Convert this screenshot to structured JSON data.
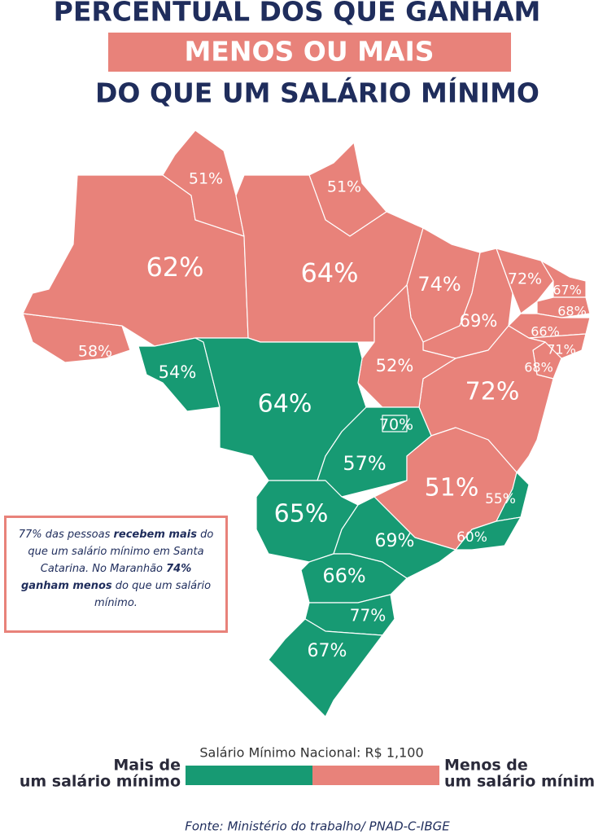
{
  "header": {
    "line1": "PERCENTUAL DOS QUE GANHAM",
    "line2": "MENOS OU MAIS",
    "line3": "DO QUE UM SALÁRIO MÍNIMO"
  },
  "regions": [
    {
      "label": "58%",
      "color": "#e8827a"
    },
    {
      "label": "62%",
      "color": "#e8827a"
    },
    {
      "label": "51%",
      "color": "#e8827a"
    },
    {
      "label": "51%",
      "color": "#e8827a"
    },
    {
      "label": "64%",
      "color": "#e8827a"
    },
    {
      "label": "74%",
      "color": "#e8827a"
    },
    {
      "label": "69%",
      "color": "#e8827a"
    },
    {
      "label": "72%",
      "color": "#e8827a"
    },
    {
      "label": "67%",
      "color": "#e8827a"
    },
    {
      "label": "68%",
      "color": "#e8827a"
    },
    {
      "label": "66%",
      "color": "#e8827a"
    },
    {
      "label": "71%",
      "color": "#e8827a"
    },
    {
      "label": "68%",
      "color": "#e8827a"
    },
    {
      "label": "72%",
      "color": "#e8827a"
    },
    {
      "label": "52%",
      "color": "#e8827a"
    },
    {
      "label": "54%",
      "color": "#179a73"
    },
    {
      "label": "64%",
      "color": "#179a73"
    },
    {
      "label": "57%",
      "color": "#179a73"
    },
    {
      "label": "70%",
      "color": "#179a73"
    },
    {
      "label": "51%",
      "color": "#e8827a"
    },
    {
      "label": "55%",
      "color": "#179a73"
    },
    {
      "label": "60%",
      "color": "#179a73"
    },
    {
      "label": "65%",
      "color": "#179a73"
    },
    {
      "label": "69%",
      "color": "#179a73"
    },
    {
      "label": "66%",
      "color": "#179a73"
    },
    {
      "label": "77%",
      "color": "#179a73"
    },
    {
      "label": "67%",
      "color": "#179a73"
    }
  ],
  "note": [
    {
      "text": "77% das pessoas ",
      "bold": false
    },
    {
      "text": "recebem mais",
      "bold": true
    },
    {
      "text": " do que um salário mínimo em Santa Catarina. No Maranhão ",
      "bold": false
    },
    {
      "text": "74% ganham menos",
      "bold": true
    },
    {
      "text": " do que um salário mínimo.",
      "bold": false
    }
  ],
  "legend": {
    "title": "Salário Mínimo Nacional: R$ 1,100",
    "left": {
      "lines": [
        "Mais de",
        "um salário mínimo"
      ],
      "color": "#179a73"
    },
    "right": {
      "lines": [
        "Menos de",
        "um salário mínimo"
      ],
      "color": "#e8827a"
    }
  },
  "footer": "Fonte: Ministério do trabalho/ PNAD-C-IBGE"
}
